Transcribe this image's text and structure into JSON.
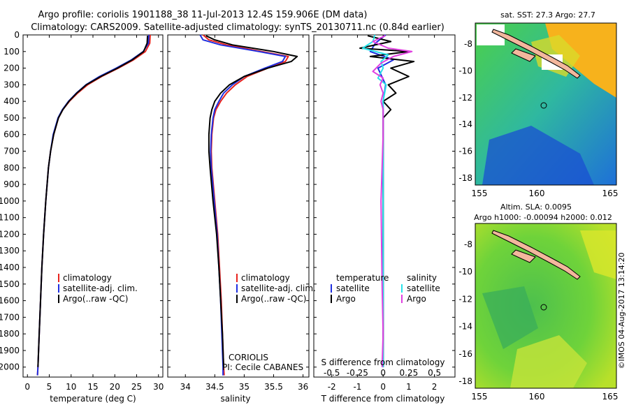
{
  "header": {
    "title_line1": "Argo profile: coriolis 1901188_38 11-Jul-2013 12.4S 159.906E (DM data)",
    "title_line2": "Climatology: CARS2009. Satellite-adjusted climatology: synTS_20130711.nc (0.84d earlier)"
  },
  "colors": {
    "climatology": "#e8231e",
    "satellite": "#1f2fe0",
    "argo": "#000000",
    "sat_salinity": "#29e3ea",
    "argo_salinity": "#e040e0"
  },
  "chart_data": [
    {
      "id": "temperature",
      "type": "line",
      "xlabel": "temperature (deg C)",
      "xlim": [
        -1,
        31
      ],
      "ylim": [
        2060,
        0
      ],
      "xticks": [
        "0",
        "5",
        "10",
        "15",
        "20",
        "25",
        "30"
      ],
      "yticks": [
        "0",
        "100",
        "200",
        "300",
        "400",
        "500",
        "600",
        "700",
        "800",
        "900",
        "1000",
        "1100",
        "1200",
        "1300",
        "1400",
        "1500",
        "1600",
        "1700",
        "1800",
        "1900",
        "2000"
      ],
      "legend": [
        "climatology",
        "satellite-adj. clim.",
        "Argo(..raw -QC)"
      ],
      "series": [
        {
          "name": "climatology",
          "depth": [
            0,
            50,
            100,
            150,
            200,
            250,
            300,
            350,
            400,
            450,
            500,
            600,
            700,
            800,
            1000,
            1200,
            1400,
            1600,
            1800,
            2000,
            2050
          ],
          "values": [
            28.1,
            28.0,
            27.0,
            24.3,
            20.8,
            17.0,
            13.8,
            11.5,
            9.6,
            8.1,
            7.1,
            6.0,
            5.3,
            4.8,
            4.2,
            3.7,
            3.3,
            3.0,
            2.7,
            2.4,
            2.3
          ]
        },
        {
          "name": "satellite-adj. clim.",
          "depth": [
            0,
            50,
            100,
            150,
            200,
            250,
            300,
            350,
            400,
            450,
            500,
            600,
            700,
            800,
            1000,
            1200,
            1400,
            1600,
            1800,
            2000,
            2050
          ],
          "values": [
            27.8,
            27.7,
            26.5,
            23.8,
            20.3,
            16.5,
            13.4,
            11.2,
            9.4,
            8.0,
            7.0,
            5.9,
            5.3,
            4.8,
            4.2,
            3.7,
            3.3,
            3.0,
            2.7,
            2.4,
            2.3
          ]
        },
        {
          "name": "Argo(..raw -QC)",
          "depth": [
            5,
            50,
            100,
            150,
            200,
            250,
            300,
            350,
            400,
            450,
            500,
            600,
            700,
            800,
            1000,
            1200,
            1400,
            1600,
            1800,
            2000
          ],
          "values": [
            27.5,
            27.4,
            26.6,
            24.0,
            20.6,
            16.8,
            13.5,
            11.3,
            9.5,
            8.1,
            7.1,
            6.0,
            5.3,
            4.8,
            4.2,
            3.7,
            3.3,
            3.0,
            2.7,
            2.4
          ]
        }
      ]
    },
    {
      "id": "salinity",
      "type": "line",
      "xlabel": "salinity",
      "xlim": [
        33.7,
        36.1
      ],
      "ylim": [
        2060,
        0
      ],
      "xticks": [
        "34",
        "34.5",
        "35",
        "35.5",
        "36"
      ],
      "legend": [
        "climatology",
        "satellite-adj. clim.",
        "Argo(..raw -QC)"
      ],
      "annotation_line1": "CORIOLIS",
      "annotation_line2": "PI: Cecile CABANES",
      "series": [
        {
          "name": "climatology",
          "depth": [
            0,
            30,
            60,
            100,
            130,
            160,
            200,
            250,
            300,
            350,
            400,
            450,
            500,
            600,
            700,
            800,
            1000,
            1200,
            1400,
            1600,
            1800,
            2000,
            2050
          ],
          "values": [
            34.3,
            34.4,
            34.7,
            35.3,
            35.75,
            35.7,
            35.4,
            35.05,
            34.85,
            34.7,
            34.6,
            34.52,
            34.48,
            34.45,
            34.44,
            34.45,
            34.5,
            34.55,
            34.58,
            34.61,
            34.63,
            34.65,
            34.66
          ]
        },
        {
          "name": "satellite-adj. clim.",
          "depth": [
            0,
            30,
            60,
            100,
            130,
            160,
            200,
            250,
            300,
            350,
            400,
            450,
            500,
            600,
            700,
            800,
            1000,
            1200,
            1400,
            1600,
            1800,
            2000,
            2050
          ],
          "values": [
            34.25,
            34.3,
            34.6,
            35.25,
            35.7,
            35.65,
            35.35,
            35.0,
            34.8,
            34.65,
            34.57,
            34.5,
            34.47,
            34.44,
            34.43,
            34.44,
            34.49,
            34.54,
            34.57,
            34.6,
            34.62,
            34.64,
            34.64
          ]
        },
        {
          "name": "Argo(..raw -QC)",
          "depth": [
            5,
            30,
            60,
            100,
            130,
            160,
            200,
            250,
            300,
            350,
            400,
            450,
            500,
            600,
            700,
            800,
            1000,
            1200,
            1400,
            1600,
            1800,
            2000
          ],
          "values": [
            34.35,
            34.5,
            34.8,
            35.5,
            35.9,
            35.8,
            35.4,
            35.0,
            34.75,
            34.6,
            34.5,
            34.45,
            34.42,
            34.4,
            34.4,
            34.42,
            34.47,
            34.53,
            34.57,
            34.6,
            34.63,
            34.65
          ]
        }
      ]
    },
    {
      "id": "difference",
      "type": "line",
      "xlabel": "T difference from climatology",
      "xlabel_top": "S difference from climatology",
      "xlim": [
        -2.7,
        2.8
      ],
      "ylim": [
        2060,
        0
      ],
      "xticks": [
        "-2",
        "-1",
        "0",
        "1",
        "2"
      ],
      "xticks_s": [
        "-0.5",
        "-0.25",
        "0",
        "0.25",
        "0.5"
      ],
      "legend_temperature": {
        "heading": "temperature",
        "items": [
          "satellite",
          "Argo"
        ]
      },
      "legend_salinity": {
        "heading": "salinity",
        "items": [
          "satellite",
          "Argo"
        ]
      },
      "series": [
        {
          "name": "temperature satellite",
          "depth": [
            0,
            50,
            100,
            150,
            200,
            300,
            400,
            500,
            700,
            1000,
            1500,
            2000
          ],
          "values": [
            0.1,
            -0.3,
            -0.5,
            0.4,
            -0.2,
            0.1,
            0.0,
            0.0,
            0.0,
            0.0,
            0.0,
            0.0
          ]
        },
        {
          "name": "temperature Argo",
          "depth": [
            5,
            40,
            80,
            100,
            130,
            160,
            200,
            250,
            300,
            350,
            400,
            450,
            500,
            700,
            1000,
            1500,
            2000
          ],
          "values": [
            -0.6,
            0.3,
            -0.9,
            1.0,
            -0.5,
            1.2,
            0.3,
            1.0,
            0.2,
            0.5,
            0.0,
            0.3,
            0.0,
            0.0,
            0.0,
            0.0,
            0.0
          ]
        },
        {
          "name": "salinity satellite",
          "depth": [
            0,
            40,
            80,
            120,
            160,
            200,
            260,
            300,
            400,
            500,
            700,
            1000,
            1500,
            2000
          ],
          "values": [
            -0.08,
            -0.1,
            -0.2,
            0.05,
            -0.02,
            0.0,
            -0.05,
            0.03,
            0.0,
            0.0,
            0.0,
            0.0,
            0.0,
            0.0
          ]
        },
        {
          "name": "salinity Argo",
          "depth": [
            5,
            40,
            80,
            100,
            130,
            170,
            220,
            260,
            300,
            350,
            400,
            450,
            500,
            600,
            800,
            1000,
            1500,
            1800,
            2000
          ],
          "values": [
            0.02,
            -0.1,
            0.05,
            0.28,
            0.1,
            -0.02,
            -0.1,
            0.0,
            -0.03,
            0.0,
            -0.02,
            0.0,
            0.0,
            0.0,
            -0.01,
            -0.02,
            -0.01,
            0.0,
            -0.01
          ]
        }
      ]
    }
  ],
  "maps": {
    "sst": {
      "title": "sat. SST: 27.3 Argo: 27.7",
      "xticks": [
        "155",
        "160",
        "165"
      ],
      "yticks": [
        "-8",
        "-10",
        "-12",
        "-14",
        "-16",
        "-18"
      ]
    },
    "sla": {
      "title_line1": "Altim. SLA: 0.0095",
      "title_line2": "Argo h1000: -0.00094 h2000: 0.012",
      "xticks": [
        "155",
        "160",
        "165"
      ],
      "yticks": [
        "-8",
        "-10",
        "-12",
        "-14",
        "-16",
        "-18"
      ]
    }
  },
  "footer": {
    "credit": "©IMOS 04-Aug-2017 13:14:20"
  }
}
